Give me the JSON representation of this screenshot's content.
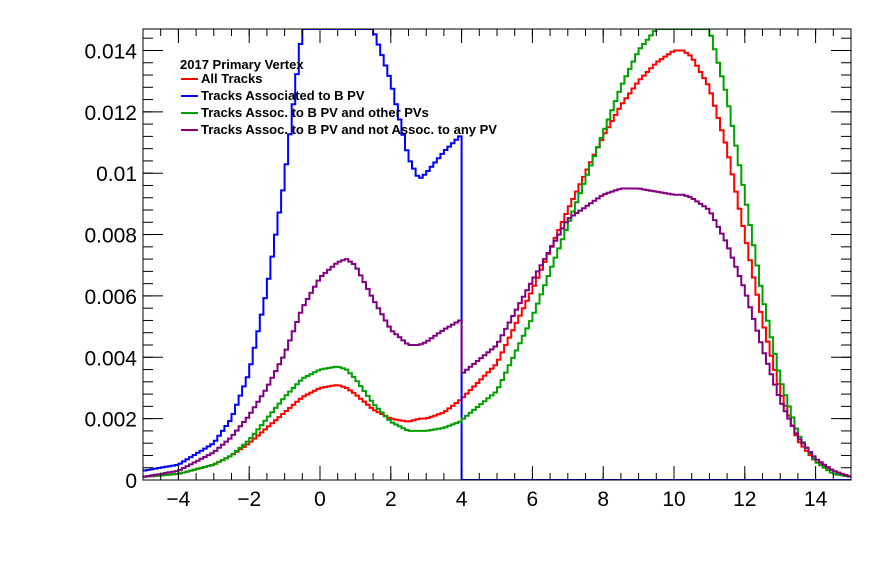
{
  "chart_data": {
    "type": "line",
    "style": "step-histogram",
    "title": "",
    "xlabel": "",
    "ylabel": "",
    "xlim": [
      -5,
      15
    ],
    "ylim": [
      0,
      0.0147
    ],
    "x_ticks": [
      -4,
      -2,
      0,
      2,
      4,
      6,
      8,
      10,
      12,
      14
    ],
    "x_tick_labels": [
      "−4",
      "−2",
      "0",
      "2",
      "4",
      "6",
      "8",
      "10",
      "12",
      "14"
    ],
    "y_ticks": [
      0,
      0.002,
      0.004,
      0.006,
      0.008,
      0.01,
      0.012,
      0.014
    ],
    "y_tick_labels": [
      "0",
      "0.002",
      "0.004",
      "0.006",
      "0.008",
      "0.01",
      "0.012",
      "0.014"
    ],
    "grid": false,
    "legend": {
      "title": "2017 Primary Vertex",
      "placement": "top-left"
    },
    "x": [
      -5,
      -4,
      -3,
      -2.5,
      -2,
      -1.5,
      -1,
      -0.5,
      0,
      0.5,
      0.75,
      1,
      1.5,
      2,
      2.5,
      2.8,
      3,
      3.5,
      3.95,
      4.05,
      5,
      6,
      7,
      8,
      8.5,
      9,
      9.5,
      10,
      10.25,
      10.5,
      11,
      11.5,
      12,
      12.5,
      13,
      13.5,
      14,
      14.5,
      15
    ],
    "series": [
      {
        "name": "All Tracks",
        "color": "#ff0000",
        "values": [
          0.0001,
          0.0002,
          0.0005,
          0.0008,
          0.0012,
          0.0017,
          0.0022,
          0.0027,
          0.003,
          0.0031,
          0.003,
          0.0028,
          0.0023,
          0.002,
          0.0019,
          0.002,
          0.002,
          0.0022,
          0.0026,
          0.0027,
          0.0038,
          0.0062,
          0.0088,
          0.0112,
          0.0122,
          0.013,
          0.0136,
          0.014,
          0.014,
          0.0138,
          0.0128,
          0.0108,
          0.008,
          0.0052,
          0.0029,
          0.0013,
          0.0006,
          0.0003,
          0.0001
        ]
      },
      {
        "name": "Tracks Associated to B PV",
        "color": "#0000ff",
        "values": [
          0.0003,
          0.0005,
          0.0012,
          0.002,
          0.0035,
          0.0062,
          0.0098,
          0.0147,
          0.0147,
          0.0147,
          0.0147,
          0.0147,
          0.0147,
          0.013,
          0.0105,
          0.0098,
          0.01,
          0.0107,
          0.0112,
          0,
          0,
          0,
          0,
          0,
          0,
          0,
          0,
          0,
          0,
          0,
          0,
          0,
          0,
          0,
          0,
          0,
          0,
          0,
          0
        ]
      },
      {
        "name": "Tracks Assoc. to B PV and other PVs",
        "color": "#00a000",
        "values": [
          0.0001,
          0.0002,
          0.0005,
          0.0008,
          0.0013,
          0.002,
          0.0027,
          0.0033,
          0.0036,
          0.0037,
          0.0036,
          0.0033,
          0.0025,
          0.0019,
          0.0016,
          0.0016,
          0.0016,
          0.0017,
          0.0019,
          0.002,
          0.0029,
          0.0053,
          0.0083,
          0.0113,
          0.0128,
          0.014,
          0.0147,
          0.0147,
          0.0147,
          0.0147,
          0.0147,
          0.0125,
          0.0093,
          0.006,
          0.0033,
          0.0015,
          0.0006,
          0.0002,
          0.0001
        ]
      },
      {
        "name": "Tracks Assoc. to B PV and not Assoc. to any PV",
        "color": "#800080",
        "values": [
          0.0001,
          0.0003,
          0.0009,
          0.0014,
          0.0021,
          0.003,
          0.0041,
          0.0056,
          0.0066,
          0.0071,
          0.0072,
          0.007,
          0.0059,
          0.0049,
          0.0044,
          0.0044,
          0.0045,
          0.0049,
          0.0052,
          0.0035,
          0.0044,
          0.0065,
          0.0085,
          0.0093,
          0.0095,
          0.0095,
          0.0094,
          0.0093,
          0.0093,
          0.0092,
          0.0088,
          0.0077,
          0.0062,
          0.0043,
          0.0026,
          0.0014,
          0.0007,
          0.0003,
          0.0001
        ]
      }
    ]
  }
}
